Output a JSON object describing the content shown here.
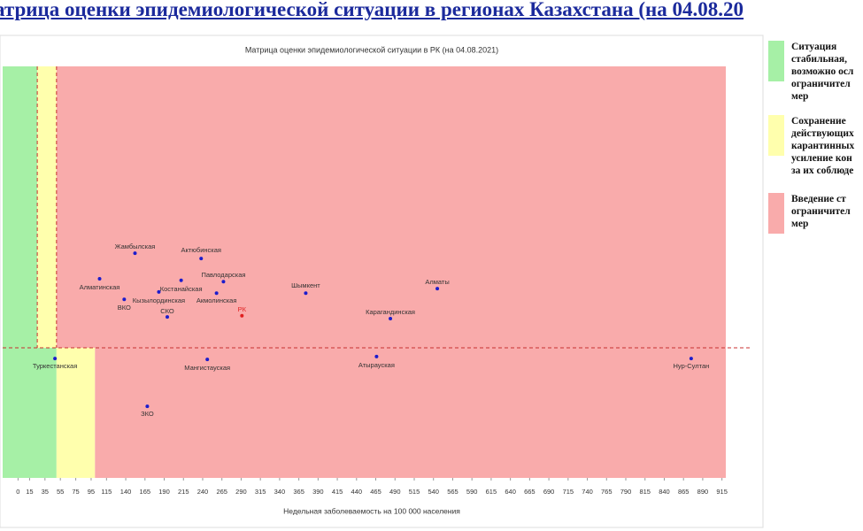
{
  "slide_title": "атрица оценки эпидемиологической ситуации в регионах Казахстана (на 04.08.20",
  "chart_data": {
    "type": "scatter",
    "title": "Матрица оценки эпидемиологической ситуации в РК (на 04.08.2021)",
    "x_label": "Недельная заболеваемость на 100 000 населения",
    "xlim": [
      -20,
      920
    ],
    "ylim": [
      0,
      100
    ],
    "xticks": [
      0,
      15,
      35,
      55,
      75,
      95,
      115,
      140,
      165,
      190,
      215,
      240,
      265,
      290,
      315,
      340,
      365,
      390,
      415,
      440,
      465,
      490,
      515,
      540,
      565,
      590,
      615,
      640,
      665,
      690,
      715,
      740,
      765,
      790,
      815,
      840,
      865,
      890,
      915
    ],
    "zones": [
      {
        "x": [
          -20,
          25
        ],
        "y": [
          31.6,
          100
        ],
        "color": "#a6f0a6"
      },
      {
        "x": [
          25,
          50
        ],
        "y": [
          31.6,
          100
        ],
        "color": "#ffffad"
      },
      {
        "x": [
          50,
          920
        ],
        "y": [
          31.6,
          100
        ],
        "color": "#f9abab"
      },
      {
        "x": [
          -20,
          50
        ],
        "y": [
          0,
          31.6
        ],
        "color": "#a6f0a6"
      },
      {
        "x": [
          50,
          100
        ],
        "y": [
          0,
          31.6
        ],
        "color": "#ffffad"
      },
      {
        "x": [
          100,
          920
        ],
        "y": [
          0,
          31.6
        ],
        "color": "#f9abab"
      }
    ],
    "dashed_x": [
      25,
      50
    ],
    "threshold_y": 31.6,
    "point_color": "#1c1ccc",
    "highlight_color": "#e02020",
    "highlight": "РК",
    "labels": [
      "Жамбылская",
      "Актюбинская",
      "Алматинская",
      "Костанайская",
      "Павлодарская",
      "Кызылординская",
      "Акмолинская",
      "ВКО",
      "СКО",
      "РК",
      "Шымкент",
      "Алматы",
      "Карагандинская",
      "Туркестанская",
      "Мангистауская",
      "Атырауская",
      "Нур-Султан",
      "ЗКО"
    ],
    "x": [
      152,
      238,
      106,
      212,
      267,
      183,
      258,
      138,
      194,
      291,
      374,
      545,
      484,
      48,
      246,
      466,
      875,
      168
    ],
    "y": [
      54.6,
      53.3,
      48.4,
      48.0,
      47.7,
      45.2,
      44.9,
      43.4,
      39.1,
      39.4,
      44.9,
      46.0,
      38.7,
      29.0,
      28.8,
      29.5,
      29.0,
      17.4
    ]
  },
  "legend": [
    {
      "color": "#a6f0a6",
      "lines": [
        "Ситуация",
        "стабильная,",
        "возможно осл",
        "ограничител",
        "мер"
      ]
    },
    {
      "color": "#ffffad",
      "lines": [
        "Сохранение",
        "действующих",
        "карантинных",
        "усиление кон",
        "за их соблюде"
      ]
    },
    {
      "color": "#f9abab",
      "lines": [
        "Введение ст",
        "ограничител",
        "мер"
      ]
    }
  ]
}
